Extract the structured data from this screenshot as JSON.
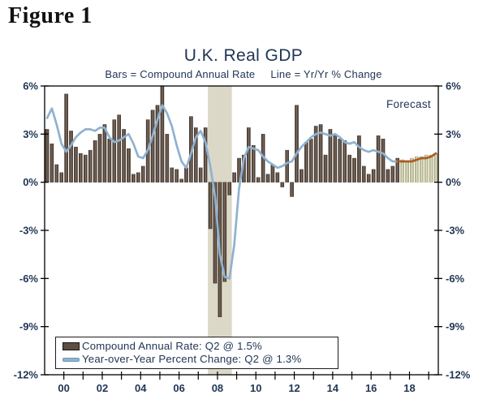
{
  "figure_label": "Figure 1",
  "chart": {
    "title": "U.K. Real GDP",
    "subtitle": "Bars = Compound Annual Rate     Line = Yr/Yr % Change",
    "forecast_label": "Forecast",
    "legend": [
      {
        "swatch": "bar",
        "label": "Compound Annual Rate: Q2 @ 1.5%"
      },
      {
        "swatch": "line",
        "label": "Year-over-Year Percent Change: Q2 @ 1.3%"
      }
    ],
    "colors": {
      "text_navy": "#223655",
      "bar_actual": "#5d4d42",
      "bar_actual_dark_edge": "#3e322a",
      "bar_actual_highlight": "#8e8073",
      "bar_forecast": "#c9c9a6",
      "bar_forecast_dark_edge": "#a3a37c",
      "bar_forecast_highlight": "#e4e4cc",
      "line_actual": "#8fb2d1",
      "line_forecast": "#aa5d20",
      "recession_band": "#dcd8c8",
      "axis": "#000000"
    }
  },
  "chart_data": {
    "type": "bar+line",
    "title": "U.K. Real GDP",
    "frequency": "quarterly",
    "x_start": "2000Q1",
    "x_end": "2020Q2",
    "actual_through": "2018Q2",
    "forecast_quarters": 8,
    "y_axis": {
      "min": -12,
      "max": 6,
      "tick_step": 3,
      "tick_labels": [
        "6%",
        "3%",
        "0%",
        "-3%",
        "-6%",
        "-9%",
        "-12%"
      ]
    },
    "x_tick_labels": [
      "00",
      "02",
      "04",
      "06",
      "08",
      "10",
      "12",
      "14",
      "16",
      "18"
    ],
    "recession_band": {
      "start": "2008Q2",
      "end": "2009Q2"
    },
    "series": [
      {
        "name": "Compound Annual Rate",
        "type": "bar",
        "values": [
          3.3,
          2.4,
          1.1,
          0.6,
          5.5,
          3.2,
          2.2,
          1.8,
          1.7,
          2.0,
          2.6,
          3.0,
          3.6,
          2.7,
          3.9,
          4.2,
          3.3,
          2.1,
          0.5,
          0.6,
          1.0,
          3.9,
          4.5,
          4.8,
          6.0,
          3.0,
          0.9,
          0.8,
          0.2,
          0.9,
          4.1,
          3.4,
          0.9,
          3.4,
          -2.9,
          -6.3,
          -8.4,
          -6.2,
          -0.8,
          0.6,
          1.5,
          1.7,
          3.4,
          2.3,
          0.3,
          3.0,
          0.5,
          1.1,
          0.6,
          -0.3,
          2.0,
          -0.9,
          4.8,
          0.8,
          2.5,
          2.7,
          3.5,
          3.6,
          1.7,
          3.3,
          3.0,
          2.7,
          2.6,
          1.7,
          1.5,
          2.9,
          1.0,
          0.5,
          0.8,
          2.9,
          2.7,
          0.8,
          1.0,
          1.5
        ],
        "forecast_values": [
          1.4,
          1.3,
          1.5,
          1.6,
          1.6,
          1.7,
          1.7,
          1.8
        ]
      },
      {
        "name": "Year-over-Year Percent Change",
        "type": "line",
        "values": [
          4.0,
          4.6,
          3.6,
          2.4,
          1.9,
          2.3,
          2.8,
          3.1,
          3.3,
          3.3,
          3.2,
          3.4,
          3.4,
          2.8,
          2.5,
          2.6,
          2.8,
          3.0,
          2.4,
          1.6,
          1.5,
          2.0,
          2.9,
          3.9,
          4.8,
          4.3,
          3.5,
          2.3,
          1.3,
          0.9,
          1.8,
          2.8,
          3.2,
          2.5,
          1.0,
          -0.9,
          -4.5,
          -5.9,
          -6.0,
          -3.9,
          -0.4,
          1.5,
          2.2,
          2.1,
          2.0,
          1.6,
          1.3,
          1.1,
          0.9,
          1.0,
          1.2,
          1.3,
          1.8,
          2.2,
          2.5,
          2.8,
          3.0,
          3.1,
          3.0,
          2.9,
          3.0,
          2.8,
          2.5,
          2.4,
          2.5,
          2.2,
          2.0,
          1.9,
          2.0,
          1.9,
          1.8,
          1.5,
          1.3,
          1.3
        ],
        "forecast_values": [
          1.3,
          1.3,
          1.3,
          1.4,
          1.5,
          1.5,
          1.6,
          1.8
        ]
      }
    ],
    "legend_position": "bottom-left",
    "grid": false
  }
}
